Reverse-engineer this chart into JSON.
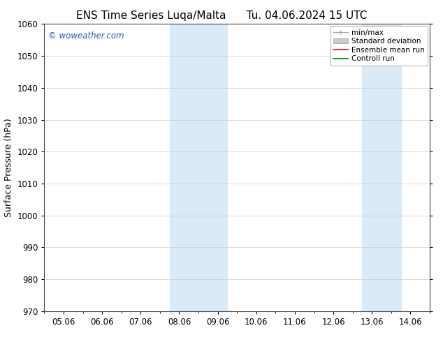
{
  "title_left": "ENS Time Series Luqa/Malta",
  "title_right": "Tu. 04.06.2024 15 UTC",
  "ylabel": "Surface Pressure (hPa)",
  "ylim": [
    970,
    1060
  ],
  "yticks": [
    970,
    980,
    990,
    1000,
    1010,
    1020,
    1030,
    1040,
    1050,
    1060
  ],
  "xtick_labels": [
    "05.06",
    "06.06",
    "07.06",
    "08.06",
    "09.06",
    "10.06",
    "11.06",
    "12.06",
    "13.06",
    "14.06"
  ],
  "x_values": [
    0,
    1,
    2,
    3,
    4,
    5,
    6,
    7,
    8,
    9
  ],
  "xlim": [
    -0.5,
    9.5
  ],
  "shaded_regions": [
    {
      "x_start": 2.75,
      "x_end": 4.25
    },
    {
      "x_start": 7.75,
      "x_end": 8.75
    }
  ],
  "shade_color": "#daeaf6",
  "watermark": "© woweather.com",
  "watermark_color": "#2255cc",
  "background_color": "#ffffff",
  "grid_color": "#cccccc",
  "grid_linewidth": 0.5,
  "title_fontsize": 11,
  "tick_fontsize": 8.5,
  "ylabel_fontsize": 9,
  "legend_fontsize": 7.5,
  "spine_color": "#444444"
}
